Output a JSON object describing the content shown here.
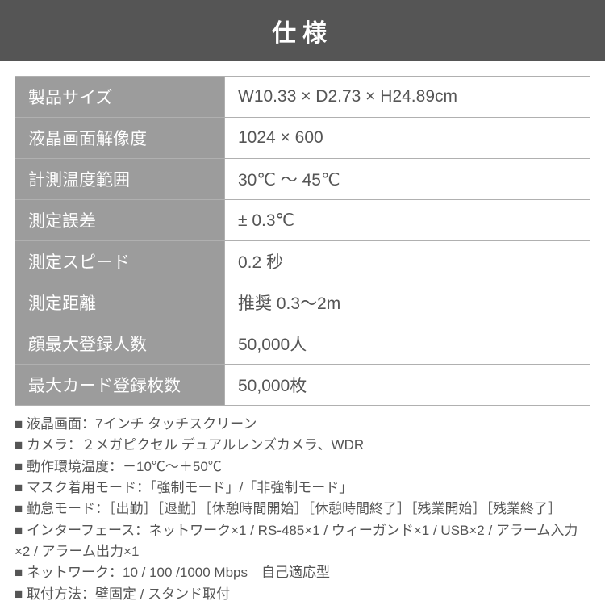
{
  "header": {
    "title": "仕様",
    "background_color": "#555555",
    "text_color": "#ffffff"
  },
  "spec_table": {
    "th_background": "#9c9c9c",
    "th_text_color": "#ffffff",
    "td_text_color": "#555555",
    "border_color": "#b0b0b0",
    "rows": [
      {
        "label": "製品サイズ",
        "value": "W10.33 × D2.73 × H24.89cm"
      },
      {
        "label": "液晶画面解像度",
        "value": "1024 × 600"
      },
      {
        "label": "計測温度範囲",
        "value": "30℃ ～ 45℃"
      },
      {
        "label": "測定誤差",
        "value": "± 0.3℃"
      },
      {
        "label": "測定スピード",
        "value": "0.2 秒"
      },
      {
        "label": "測定距離",
        "value": "推奨 0.3～2m"
      },
      {
        "label": "顔最大登録人数",
        "value": "50,000人"
      },
      {
        "label": "最大カード登録枚数",
        "value": "50,000枚"
      }
    ]
  },
  "notes": {
    "text_color": "#555555",
    "lines": [
      "■ 液晶画面：7インチ タッチスクリーン",
      "■ カメラ：２メガピクセル デュアルレンズカメラ、WDR",
      "■ 動作環境温度：－10℃～＋50℃",
      "■ マスク着用モード：「強制モード」/「非強制モード」",
      "■ 勤怠モード：［出勤］［退勤］［休憩時間開始］［休憩時間終了］［残業開始］［残業終了］",
      "■ インターフェース：ネットワーク×1 / RS-485×1 / ウィーガンド×1 / USB×2 / アラーム入力×2 / アラーム出力×1",
      "■ ネットワーク：10 / 100 /1000 Mbps　自己適応型",
      "■ 取付方法：壁固定 / スタンド取付"
    ]
  }
}
